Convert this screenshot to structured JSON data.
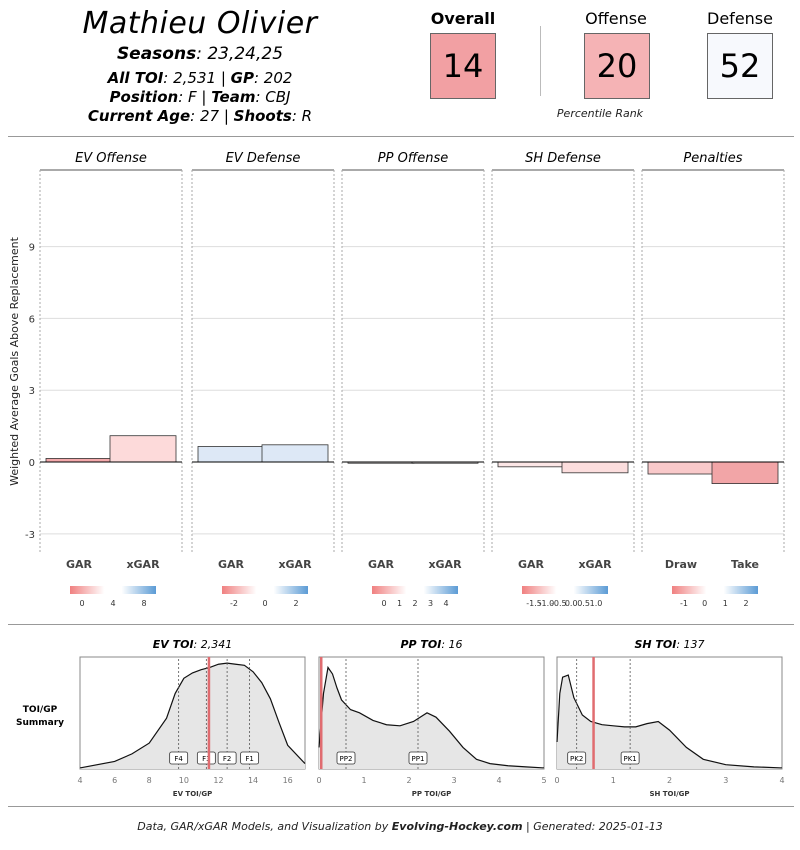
{
  "player": {
    "name": "Mathieu Olivier",
    "seasons_label": "Seasons",
    "seasons_value": ": 23,24,25",
    "toi_label": "All TOI",
    "toi_value": ": 2,531 | ",
    "gp_label": "GP",
    "gp_value": ": 202",
    "position_label": "Position",
    "position_value": ": F | ",
    "team_label": "Team",
    "team_value": ": CBJ",
    "age_label": "Current Age",
    "age_value": ": 27 | ",
    "shoots_label": "Shoots",
    "shoots_value": ": R"
  },
  "scores": {
    "overall_label": "Overall",
    "overall_value": "14",
    "offense_label": "Offense",
    "offense_value": "20",
    "defense_label": "Defense",
    "defense_value": "52",
    "caption": "Percentile Rank",
    "colors": {
      "overall": "#f2a0a3",
      "offense": "#f5b3b5",
      "defense": "#f7f9fd"
    }
  },
  "chart_data": [
    {
      "type": "bar",
      "ylabel": "Weighted Average Goals Above Replacement",
      "ylim": [
        -3.8,
        12.2
      ],
      "yticks": [
        "-3",
        "0",
        "3",
        "6",
        "9"
      ],
      "grid": true,
      "panels": [
        {
          "title": "EV Offense",
          "categories": [
            "GAR",
            "xGAR"
          ],
          "values": [
            0.15,
            1.1
          ],
          "colors": [
            "#f4a9ab",
            "#fddada"
          ],
          "legend_ticks": [
            "0",
            "4",
            "8"
          ]
        },
        {
          "title": "EV Defense",
          "categories": [
            "GAR",
            "xGAR"
          ],
          "values": [
            0.65,
            0.72
          ],
          "colors": [
            "#dde8f6",
            "#dde8f6"
          ],
          "legend_ticks": [
            "-2",
            "0",
            "2"
          ]
        },
        {
          "title": "PP Offense",
          "categories": [
            "GAR",
            "xGAR"
          ],
          "values": [
            -0.05,
            -0.05
          ],
          "colors": [
            "#f5f0f0",
            "#f5f0f0"
          ],
          "legend_ticks": [
            "0",
            "1",
            "2",
            "3",
            "4"
          ]
        },
        {
          "title": "SH Defense",
          "categories": [
            "GAR",
            "xGAR"
          ],
          "values": [
            -0.2,
            -0.45
          ],
          "colors": [
            "#fce6e6",
            "#fcdede"
          ],
          "legend_ticks": [
            "-1.5",
            "-1.0",
            "-0.5",
            "0.0",
            "0.5",
            "1.0"
          ]
        },
        {
          "title": "Penalties",
          "categories": [
            "Draw",
            "Take"
          ],
          "values": [
            -0.5,
            -0.9
          ],
          "colors": [
            "#f9c9ca",
            "#f2a5a7"
          ],
          "legend_ticks": [
            "-1",
            "0",
            "1",
            "2"
          ]
        }
      ]
    },
    {
      "type": "area",
      "ylabel": "TOI/GP Summary",
      "panels": [
        {
          "title_label": "EV TOI",
          "title_value": ": 2,341",
          "xlabel": "EV TOI/GP",
          "xlim": [
            4,
            17
          ],
          "xticks": [
            "4",
            "6",
            "8",
            "10",
            "12",
            "14",
            "16"
          ],
          "x": [
            4,
            6,
            7,
            8,
            9,
            9.5,
            10,
            10.5,
            11,
            11.5,
            12,
            12.5,
            13,
            13.5,
            14,
            14.5,
            15,
            15.5,
            16,
            17
          ],
          "density": [
            0.01,
            0.07,
            0.14,
            0.24,
            0.47,
            0.7,
            0.84,
            0.89,
            0.92,
            0.94,
            0.97,
            0.98,
            0.97,
            0.96,
            0.9,
            0.8,
            0.65,
            0.43,
            0.22,
            0.05
          ],
          "player_value": 11.45,
          "markers": [
            {
              "label": "F4",
              "x": 9.7
            },
            {
              "label": "F3",
              "x": 11.3
            },
            {
              "label": "F2",
              "x": 12.5
            },
            {
              "label": "F1",
              "x": 13.8
            }
          ]
        },
        {
          "title_label": "PP TOI",
          "title_value": ": 16",
          "xlabel": "PP TOI/GP",
          "xlim": [
            0,
            5
          ],
          "xticks": [
            "0",
            "1",
            "2",
            "3",
            "4",
            "5"
          ],
          "x": [
            0,
            0.1,
            0.2,
            0.3,
            0.4,
            0.5,
            0.7,
            0.9,
            1.2,
            1.5,
            1.8,
            2.1,
            2.4,
            2.6,
            2.9,
            3.2,
            3.5,
            3.8,
            4.2,
            4.6,
            5
          ],
          "density": [
            0.2,
            0.7,
            0.94,
            0.88,
            0.75,
            0.64,
            0.55,
            0.52,
            0.45,
            0.41,
            0.4,
            0.44,
            0.52,
            0.48,
            0.35,
            0.2,
            0.09,
            0.05,
            0.03,
            0.02,
            0.01
          ],
          "player_value": 0.05,
          "markers": [
            {
              "label": "PP2",
              "x": 0.6
            },
            {
              "label": "PP1",
              "x": 2.2
            }
          ]
        },
        {
          "title_label": "SH TOI",
          "title_value": ": 137",
          "xlabel": "SH TOI/GP",
          "xlim": [
            0,
            4
          ],
          "xticks": [
            "0",
            "1",
            "2",
            "3",
            "4"
          ],
          "x": [
            0,
            0.05,
            0.1,
            0.2,
            0.3,
            0.45,
            0.6,
            0.8,
            1.0,
            1.2,
            1.4,
            1.6,
            1.8,
            2.0,
            2.3,
            2.6,
            3.0,
            3.5,
            4
          ],
          "density": [
            0.25,
            0.7,
            0.85,
            0.87,
            0.66,
            0.5,
            0.44,
            0.41,
            0.4,
            0.39,
            0.39,
            0.42,
            0.44,
            0.36,
            0.2,
            0.09,
            0.04,
            0.02,
            0.01
          ],
          "player_value": 0.65,
          "markers": [
            {
              "label": "PK2",
              "x": 0.35
            },
            {
              "label": "PK1",
              "x": 1.3
            }
          ]
        }
      ]
    }
  ],
  "footer": {
    "prefix": "Data, GAR/xGAR Models, and Visualization by ",
    "site": "Evolving-Hockey.com",
    "suffix": " | Generated: 2025-01-13"
  }
}
